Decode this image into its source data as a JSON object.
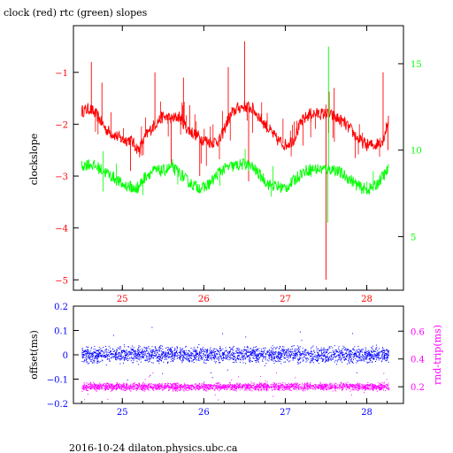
{
  "title": "clock (red) rtc (green) slopes",
  "footer": "2016-10-24 dilaton.physics.ubc.ca",
  "colors": {
    "clock": "#ff0000",
    "rtc": "#00ff00",
    "offset": "#0000ff",
    "rnd_trip": "#ff00ff",
    "axis": "#000000"
  },
  "chart_data": [
    {
      "type": "line",
      "ylabel": "clockslope",
      "y2label": "",
      "xlim": [
        24.4,
        28.45
      ],
      "ylim": [
        -5.2,
        -0.1
      ],
      "y2lim": [
        1.9,
        17.2
      ],
      "x_ticks": [
        "25",
        "26",
        "27",
        "28"
      ],
      "y_ticks": [
        "-1",
        "-2",
        "-3",
        "-4",
        "-5"
      ],
      "y2_ticks": [
        "5",
        "10",
        "15"
      ],
      "grid": false,
      "series": [
        {
          "name": "clock (red)",
          "axis": "left",
          "points": [
            [
              24.5,
              -1.75
            ],
            [
              24.6,
              -1.7
            ],
            [
              24.7,
              -1.85
            ],
            [
              24.8,
              -2.1
            ],
            [
              24.9,
              -2.2
            ],
            [
              25.0,
              -2.3
            ],
            [
              25.1,
              -2.3
            ],
            [
              25.2,
              -2.5
            ],
            [
              25.3,
              -2.2
            ],
            [
              25.4,
              -2.0
            ],
            [
              25.5,
              -1.85
            ],
            [
              25.6,
              -1.9
            ],
            [
              25.7,
              -1.85
            ],
            [
              25.8,
              -2.1
            ],
            [
              25.9,
              -2.2
            ],
            [
              26.0,
              -2.3
            ],
            [
              26.1,
              -2.35
            ],
            [
              26.2,
              -2.3
            ],
            [
              26.3,
              -1.9
            ],
            [
              26.4,
              -1.7
            ],
            [
              26.5,
              -1.65
            ],
            [
              26.6,
              -1.7
            ],
            [
              26.7,
              -1.9
            ],
            [
              26.8,
              -2.1
            ],
            [
              26.9,
              -2.3
            ],
            [
              27.0,
              -2.4
            ],
            [
              27.1,
              -2.3
            ],
            [
              27.2,
              -1.95
            ],
            [
              27.3,
              -1.8
            ],
            [
              27.4,
              -1.8
            ],
            [
              27.5,
              -1.8
            ],
            [
              27.6,
              -1.85
            ],
            [
              27.7,
              -1.95
            ],
            [
              27.8,
              -2.1
            ],
            [
              27.9,
              -2.3
            ],
            [
              28.0,
              -2.4
            ],
            [
              28.1,
              -2.4
            ],
            [
              28.2,
              -2.3
            ],
            [
              28.27,
              -1.9
            ]
          ],
          "spikes": [
            [
              24.62,
              -0.8
            ],
            [
              24.75,
              -1.2
            ],
            [
              25.1,
              -2.9
            ],
            [
              25.4,
              -1.0
            ],
            [
              25.6,
              -2.8
            ],
            [
              25.75,
              -1.1
            ],
            [
              25.95,
              -3.0
            ],
            [
              26.3,
              -0.9
            ],
            [
              26.5,
              -0.4
            ],
            [
              26.55,
              -3.1
            ],
            [
              27.5,
              -5.0
            ],
            [
              27.6,
              -1.3
            ],
            [
              28.2,
              -1.0
            ],
            [
              28.26,
              -2.5
            ]
          ]
        },
        {
          "name": "rtc (green)",
          "axis": "right",
          "points": [
            [
              24.5,
              9.1
            ],
            [
              24.6,
              9.2
            ],
            [
              24.7,
              9.0
            ],
            [
              24.8,
              8.7
            ],
            [
              24.9,
              8.4
            ],
            [
              25.0,
              8.0
            ],
            [
              25.1,
              7.9
            ],
            [
              25.15,
              7.7
            ],
            [
              25.2,
              7.9
            ],
            [
              25.3,
              8.6
            ],
            [
              25.4,
              8.8
            ],
            [
              25.5,
              8.8
            ],
            [
              25.6,
              9.0
            ],
            [
              25.7,
              8.7
            ],
            [
              25.8,
              8.2
            ],
            [
              25.9,
              7.9
            ],
            [
              26.0,
              7.8
            ],
            [
              26.1,
              8.2
            ],
            [
              26.2,
              8.8
            ],
            [
              26.3,
              9.0
            ],
            [
              26.4,
              9.1
            ],
            [
              26.5,
              9.2
            ],
            [
              26.6,
              9.0
            ],
            [
              26.7,
              8.5
            ],
            [
              26.8,
              8.0
            ],
            [
              26.9,
              7.9
            ],
            [
              27.0,
              7.8
            ],
            [
              27.1,
              8.2
            ],
            [
              27.2,
              8.7
            ],
            [
              27.3,
              8.9
            ],
            [
              27.4,
              8.9
            ],
            [
              27.5,
              8.9
            ],
            [
              27.6,
              8.9
            ],
            [
              27.7,
              8.6
            ],
            [
              27.8,
              8.3
            ],
            [
              27.9,
              7.9
            ],
            [
              28.0,
              7.7
            ],
            [
              28.1,
              7.9
            ],
            [
              28.2,
              8.5
            ],
            [
              28.27,
              8.9
            ]
          ],
          "spikes": [
            [
              27.53,
              16.0
            ],
            [
              27.52,
              5.8
            ]
          ]
        }
      ]
    },
    {
      "type": "scatter",
      "ylabel": "offset(ms)",
      "y2label": "rnd-trip(ms)",
      "xlim": [
        24.4,
        28.45
      ],
      "ylim": [
        -0.2,
        0.2
      ],
      "y2lim": [
        0.08,
        0.78
      ],
      "x_ticks": [
        "25",
        "26",
        "27",
        "28"
      ],
      "y_ticks": [
        "0.2",
        "0.1",
        "0",
        "-0.1",
        "-0.2"
      ],
      "y2_ticks": [
        "0.6",
        "0.4",
        "0.2"
      ],
      "grid": false,
      "series": [
        {
          "name": "offset",
          "axis": "left",
          "x_range": [
            24.5,
            28.27
          ],
          "center": 0.0,
          "spread": 0.03
        },
        {
          "name": "rnd-trip",
          "axis": "right",
          "x_range": [
            24.5,
            28.27
          ],
          "center": 0.2,
          "spread": 0.025
        }
      ]
    }
  ]
}
